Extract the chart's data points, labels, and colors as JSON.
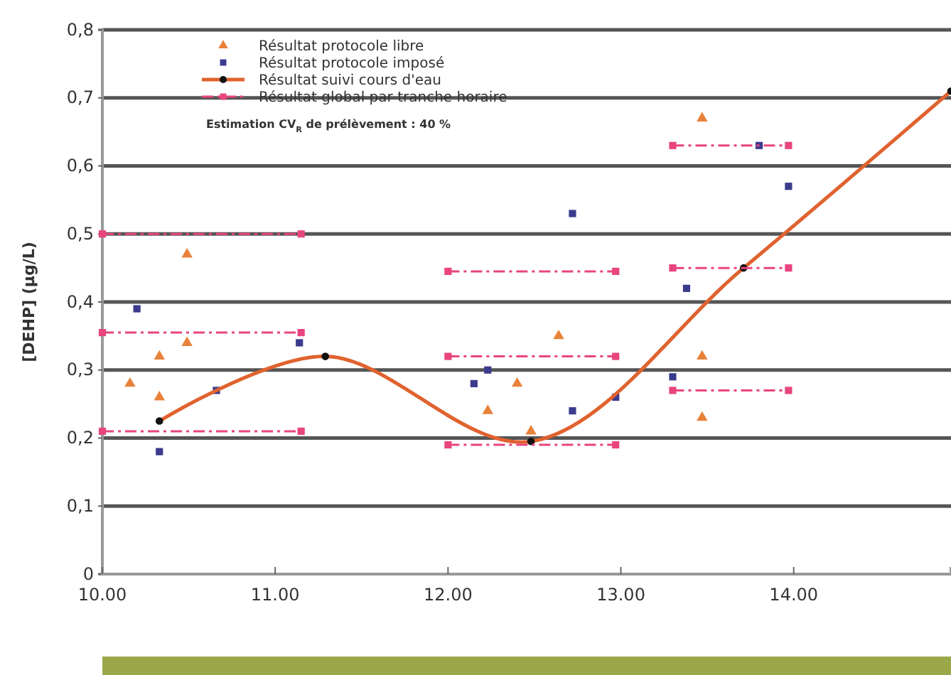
{
  "chart_data": {
    "type": "scatter",
    "ylabel": "[DEHP] (µg/L)",
    "xlim": [
      10,
      14.91
    ],
    "xticks": [
      {
        "value": 10,
        "label": "10.00"
      },
      {
        "value": 11,
        "label": "11.00"
      },
      {
        "value": 12,
        "label": "12.00"
      },
      {
        "value": 13,
        "label": "13.00"
      },
      {
        "value": 14,
        "label": "14.00"
      }
    ],
    "ylim": [
      0,
      0.8
    ],
    "yticks": [
      0,
      {
        "value": 0.1,
        "label": "0,1"
      },
      {
        "value": 0.2,
        "label": "0,2"
      },
      {
        "value": 0.3,
        "label": "0,3"
      },
      {
        "value": 0.4,
        "label": "0,4"
      },
      {
        "value": 0.5,
        "label": "0,5"
      },
      {
        "value": 0.6,
        "label": "0,6"
      },
      {
        "value": 0.7,
        "label": "0,7"
      },
      {
        "value": 0.8,
        "label": "0,8"
      }
    ],
    "grid": "y",
    "legend": "top left",
    "annotations": [
      "Estimation CV$_{R}$ de prélèvement : 40 %"
    ],
    "series": [
      {
        "name": "Résultat protocole libre",
        "marker": "triangle",
        "color": "#e8823a",
        "x": [
          10.16,
          10.33,
          10.33,
          10.49,
          10.49,
          12.23,
          12.4,
          12.48,
          12.64,
          13.47,
          13.47,
          13.47
        ],
        "values": [
          0.28,
          0.32,
          0.26,
          0.34,
          0.47,
          0.24,
          0.28,
          0.21,
          0.35,
          0.32,
          0.23,
          0.67
        ]
      },
      {
        "name": "Résultat protocole imposé",
        "marker": "square",
        "color": "#3b3b8e",
        "x": [
          10.2,
          10.33,
          10.66,
          11.14,
          12.15,
          12.23,
          12.72,
          12.97,
          13.3,
          12.72,
          13.38,
          13.8,
          13.97
        ],
        "values": [
          0.39,
          0.18,
          0.27,
          0.34,
          0.28,
          0.3,
          0.24,
          0.26,
          0.29,
          0.53,
          0.42,
          0.63,
          0.57
        ]
      },
      {
        "name": "Résultat suivi cours d'eau",
        "type": "line",
        "marker": "circle",
        "line_style": "solid",
        "color": "#e0622e",
        "x": [
          10.33,
          11.29,
          12.48,
          13.71,
          14.91
        ],
        "values": [
          0.225,
          0.32,
          0.195,
          0.45,
          0.71
        ]
      },
      {
        "name": "Résultat global par tranche horaire",
        "type": "line",
        "marker": "square",
        "line_style": "dashed",
        "color": "#e8457f",
        "x": [
          10,
          11.15
        ],
        "values": [
          0.5,
          0.5
        ]
      },
      {
        "type": "line",
        "marker": "square",
        "line_style": "dashed",
        "color": "#e8457f",
        "x": [
          10,
          11.15
        ],
        "values": [
          0.355,
          0.355
        ]
      },
      {
        "type": "line",
        "marker": "square",
        "line_style": "dashed",
        "color": "#e8457f",
        "x": [
          10,
          11.15
        ],
        "values": [
          0.21,
          0.21
        ]
      },
      {
        "type": "line",
        "marker": "square",
        "line_style": "dashed",
        "color": "#e8457f",
        "x": [
          12,
          12.97
        ],
        "values": [
          0.445,
          0.445
        ]
      },
      {
        "type": "line",
        "marker": "square",
        "line_style": "dashed",
        "color": "#e8457f",
        "x": [
          12,
          12.97
        ],
        "values": [
          0.32,
          0.32
        ]
      },
      {
        "type": "line",
        "marker": "square",
        "line_style": "dashed",
        "color": "#e8457f",
        "x": [
          12,
          12.97
        ],
        "values": [
          0.19,
          0.19
        ]
      },
      {
        "type": "line",
        "marker": "square",
        "line_style": "dashed",
        "color": "#e8457f",
        "x": [
          13.3,
          13.97
        ],
        "values": [
          0.63,
          0.63
        ]
      },
      {
        "type": "line",
        "marker": "square",
        "line_style": "dashed",
        "color": "#e8457f",
        "x": [
          13.3,
          13.97
        ],
        "values": [
          0.45,
          0.45
        ]
      },
      {
        "type": "line",
        "marker": "square",
        "line_style": "dashed",
        "color": "#e8457f",
        "x": [
          13.3,
          13.97
        ],
        "values": [
          0.27,
          0.27
        ]
      }
    ]
  }
}
